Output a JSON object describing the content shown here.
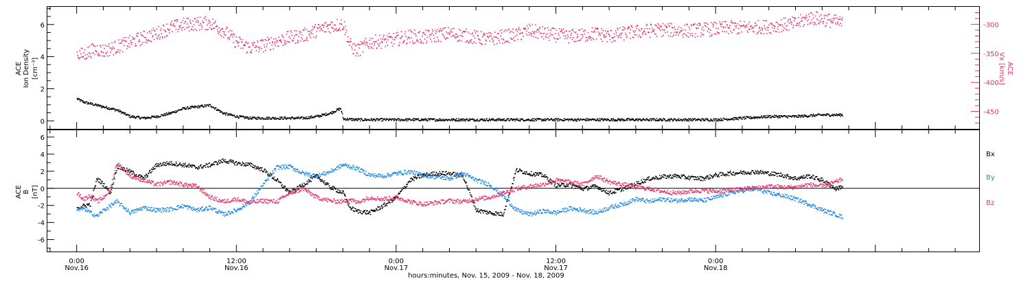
{
  "chart_data": [
    {
      "type": "scatter",
      "title": "",
      "ylabel": [
        "ACE",
        "Ion Density",
        "[cm⁻³]"
      ],
      "ylim": [
        -0.5,
        7.1
      ],
      "yticks": [
        0,
        2,
        4,
        6
      ],
      "y2label": [
        "ACE",
        "Vx [km/s]"
      ],
      "y2lim": [
        -480,
        -270
      ],
      "y2ticks": [
        -300,
        -350,
        -400,
        -450
      ],
      "grid": false,
      "series": [
        {
          "axis": "left",
          "color": "#000000",
          "x": [
            0,
            0.5,
            1,
            2,
            3,
            4,
            5,
            6,
            7,
            8,
            9,
            10,
            11,
            12,
            13,
            14,
            15,
            16,
            17,
            18,
            19,
            19.8,
            20,
            21,
            22,
            24,
            26,
            28,
            30,
            32,
            34,
            36,
            38,
            40,
            42,
            44,
            46,
            48,
            50,
            52,
            54,
            56,
            57.5
          ],
          "y": [
            1.4,
            1.2,
            1.1,
            0.9,
            0.7,
            0.3,
            0.2,
            0.3,
            0.5,
            0.8,
            0.9,
            1.0,
            0.5,
            0.3,
            0.2,
            0.2,
            0.2,
            0.2,
            0.2,
            0.3,
            0.5,
            0.8,
            0.15,
            0.1,
            0.1,
            0.1,
            0.1,
            0.1,
            0.1,
            0.1,
            0.1,
            0.1,
            0.1,
            0.1,
            0.1,
            0.1,
            0.1,
            0.1,
            0.2,
            0.3,
            0.3,
            0.4,
            0.4
          ]
        },
        {
          "axis": "right",
          "color": "#e8306a",
          "x": [
            0,
            0.5,
            1,
            1.5,
            2,
            3,
            4,
            5,
            6,
            7,
            8,
            9,
            10,
            11,
            12,
            13,
            14,
            15,
            16,
            17,
            18,
            19,
            19.8,
            20,
            20.5,
            21,
            22,
            23,
            24,
            25,
            26,
            27,
            28,
            29,
            30,
            31,
            32,
            33,
            34,
            35,
            36,
            37,
            38,
            39,
            40,
            41,
            42,
            43,
            44,
            45,
            46,
            47,
            48,
            49,
            50,
            51,
            52,
            53,
            54,
            55,
            56,
            57,
            57.5
          ],
          "y": [
            -350,
            -352,
            -345,
            -342,
            -345,
            -338,
            -330,
            -322,
            -315,
            -305,
            -300,
            -298,
            -297,
            -310,
            -330,
            -340,
            -335,
            -328,
            -322,
            -318,
            -310,
            -302,
            -300,
            -298,
            -335,
            -345,
            -330,
            -328,
            -325,
            -320,
            -322,
            -318,
            -315,
            -318,
            -322,
            -325,
            -320,
            -318,
            -310,
            -315,
            -318,
            -320,
            -318,
            -315,
            -320,
            -315,
            -312,
            -310,
            -308,
            -310,
            -310,
            -308,
            -307,
            -305,
            -305,
            -304,
            -303,
            -300,
            -298,
            -288,
            -290,
            -295,
            -298
          ]
        }
      ]
    },
    {
      "type": "scatter",
      "title": "",
      "ylabel": [
        "ACE",
        "B",
        "[nT]"
      ],
      "ylim": [
        -7.4,
        6.8
      ],
      "yticks": [
        -6,
        -4,
        -2,
        0,
        2,
        4,
        6
      ],
      "zero_line": 0,
      "grid": false,
      "legend": "right",
      "series": [
        {
          "name": "Bx",
          "color": "#000000",
          "x": [
            0,
            0.5,
            1,
            1.5,
            2,
            2.5,
            3,
            4,
            5,
            6,
            7,
            8,
            9,
            10,
            11,
            12,
            13,
            14,
            15,
            16,
            17,
            18,
            19,
            20,
            20.5,
            21,
            22,
            23,
            24,
            25,
            26,
            27,
            28,
            29,
            30,
            31,
            32,
            33,
            34,
            35,
            36,
            37,
            38,
            39,
            40,
            41,
            42,
            43,
            44,
            45,
            46,
            47,
            48,
            49,
            50,
            51,
            52,
            53,
            54,
            55,
            56,
            57,
            57.5
          ],
          "y": [
            -2.2,
            -2,
            -1.8,
            1.2,
            0.5,
            -0.5,
            2.6,
            2,
            1.2,
            2.8,
            3,
            2.8,
            2.5,
            2.8,
            3.3,
            3,
            2.8,
            2.2,
            1,
            -0.5,
            0.5,
            1.5,
            0.2,
            -0.5,
            -2.2,
            -2.6,
            -2.8,
            -2,
            -1,
            1,
            1.6,
            1.8,
            1.8,
            1.5,
            -2.5,
            -2.8,
            -3,
            2.2,
            1.8,
            1.6,
            0.4,
            0.5,
            0,
            0.3,
            -0.5,
            0,
            0.6,
            1.2,
            1.4,
            1.5,
            1.3,
            1.2,
            1.6,
            1.8,
            1.9,
            2,
            1.8,
            1.6,
            1.2,
            1.5,
            1,
            0,
            0.3
          ]
        },
        {
          "name": "By",
          "color": "#1e88e5",
          "x": [
            0,
            0.5,
            1,
            1.5,
            2,
            2.5,
            3,
            4,
            5,
            6,
            7,
            8,
            9,
            10,
            11,
            12,
            13,
            14,
            15,
            16,
            17,
            18,
            19,
            20,
            20.5,
            21,
            22,
            23,
            24,
            25,
            26,
            27,
            28,
            29,
            30,
            31,
            32,
            33,
            34,
            35,
            36,
            37,
            38,
            39,
            40,
            41,
            42,
            43,
            44,
            45,
            46,
            47,
            48,
            49,
            50,
            51,
            52,
            53,
            54,
            55,
            56,
            57,
            57.5
          ],
          "y": [
            -2.5,
            -2.3,
            -2.8,
            -3.2,
            -2.5,
            -2,
            -1.5,
            -2.8,
            -2.2,
            -2.5,
            -2.4,
            -2,
            -2.5,
            -2.2,
            -3,
            -2.5,
            -1.5,
            0.5,
            2.5,
            2.6,
            1.8,
            1.5,
            2,
            2.8,
            2.6,
            2.4,
            1.6,
            1.5,
            1.8,
            2,
            1.6,
            1.4,
            1.2,
            1.8,
            1,
            0.5,
            -0.8,
            -2.5,
            -3,
            -2.6,
            -2.8,
            -2.3,
            -2.5,
            -2.8,
            -2.2,
            -1.8,
            -1.2,
            -1.5,
            -1.2,
            -1.4,
            -1.2,
            -1.4,
            -1,
            -0.5,
            -0.2,
            0,
            -0.5,
            -0.8,
            -1.2,
            -1.8,
            -2.5,
            -3,
            -3.3
          ]
        },
        {
          "name": "Bz",
          "color": "#e8306a",
          "x": [
            0,
            0.5,
            1,
            1.5,
            2,
            2.5,
            3,
            4,
            5,
            6,
            7,
            8,
            9,
            10,
            11,
            12,
            13,
            14,
            15,
            16,
            17,
            18,
            19,
            20,
            20.5,
            21,
            22,
            23,
            24,
            25,
            26,
            27,
            28,
            29,
            30,
            31,
            32,
            33,
            34,
            35,
            36,
            37,
            38,
            39,
            40,
            41,
            42,
            43,
            44,
            45,
            46,
            47,
            48,
            49,
            50,
            51,
            52,
            53,
            54,
            55,
            56,
            57,
            57.5
          ],
          "y": [
            -0.5,
            -1.2,
            -0.8,
            -1.5,
            -1,
            0,
            3,
            1.5,
            1,
            0.5,
            0.8,
            0.5,
            0.3,
            -1,
            -1.5,
            -1.2,
            -1.6,
            -1.4,
            -1.5,
            -0.5,
            0,
            -1,
            -1.4,
            -1.5,
            -1.2,
            -1.6,
            -1,
            -1.2,
            -1,
            -1.5,
            -1.8,
            -1.6,
            -1.4,
            -1.5,
            -1.2,
            -1,
            -0.5,
            0,
            0.3,
            0.5,
            1,
            0.8,
            0.5,
            1.5,
            0.8,
            0.5,
            0.2,
            0,
            -0.3,
            -0.5,
            -0.3,
            -0.2,
            -0.3,
            -0.2,
            0,
            0.1,
            0.3,
            0.2,
            0.2,
            0.5,
            0.3,
            0.8,
            1.2
          ]
        }
      ]
    }
  ],
  "x_axis": {
    "range_hours": [
      -2.2,
      67.8
    ],
    "ticks": [
      {
        "x": 0,
        "time": "0:00",
        "date": "Nov.16"
      },
      {
        "x": 12,
        "time": "12:00",
        "date": "Nov.16"
      },
      {
        "x": 24,
        "time": "0:00",
        "date": "Nov.17"
      },
      {
        "x": 36,
        "time": "12:00",
        "date": "Nov.17"
      },
      {
        "x": 48,
        "time": "0:00",
        "date": "Nov.18"
      }
    ],
    "xlabel": "hours:minutes, Nov. 15, 2009 - Nov. 18, 2009"
  },
  "colors": {
    "black": "#000000",
    "pink": "#e8306a",
    "blue": "#1e88e5"
  }
}
